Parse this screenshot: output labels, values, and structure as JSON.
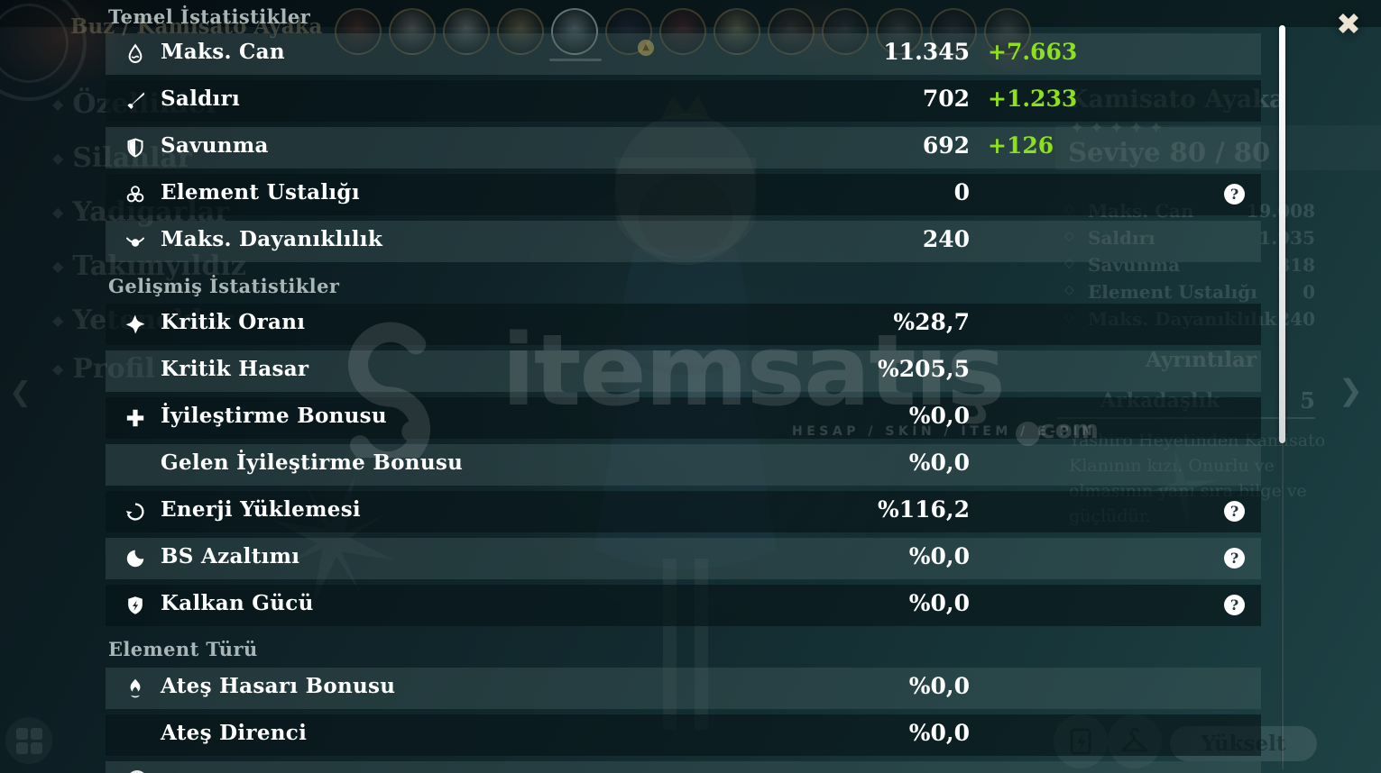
{
  "icons": {
    "close": "✖",
    "help": "?",
    "star": "✦",
    "back_chevron": "❮",
    "forward_chevron": "❯",
    "badge_arrow": "▲",
    "bullet": "◆",
    "stat_bullet": "◇"
  },
  "colors": {
    "bonus_green": "#8ee01c",
    "panel_light_row": "#1e3336",
    "panel_dark_row": "#14282c"
  },
  "overlay": {
    "sections": [
      {
        "title": "Temel İstatistikler",
        "rows": [
          {
            "icon": "hp-icon",
            "label": "Maks. Can",
            "value": "11.345",
            "bonus": "+7.663"
          },
          {
            "icon": "attack-icon",
            "label": "Saldırı",
            "value": "702",
            "bonus": "+1.233"
          },
          {
            "icon": "defense-icon",
            "label": "Savunma",
            "value": "692",
            "bonus": "+126"
          },
          {
            "icon": "elemental-mastery-icon",
            "label": "Element Ustalığı",
            "value": "0",
            "help": true
          },
          {
            "icon": "stamina-icon",
            "label": "Maks. Dayanıklılık",
            "value": "240"
          }
        ]
      },
      {
        "title": "Gelişmiş İstatistikler",
        "rows": [
          {
            "icon": "crit-rate-icon",
            "label": "Kritik Oranı",
            "value": "%28,7"
          },
          {
            "icon": null,
            "label": "Kritik Hasar",
            "value": "%205,5"
          },
          {
            "icon": "healing-bonus-icon",
            "label": "İyileştirme Bonusu",
            "value": "%0,0"
          },
          {
            "icon": null,
            "label": "Gelen İyileştirme Bonusu",
            "value": "%0,0"
          },
          {
            "icon": "energy-recharge-icon",
            "label": "Enerji Yüklemesi",
            "value": "%116,2",
            "help": true
          },
          {
            "icon": "cooldown-reduction-icon",
            "label": "BS Azaltımı",
            "value": "%0,0",
            "help": true
          },
          {
            "icon": "shield-strength-icon",
            "label": "Kalkan Gücü",
            "value": "%0,0",
            "help": true
          }
        ]
      },
      {
        "title": "Element Türü",
        "rows": [
          {
            "icon": "pyro-icon",
            "label": "Ateş Hasarı Bonusu",
            "value": "%0,0"
          },
          {
            "icon": null,
            "label": "Ateş Direnci",
            "value": "%0,0"
          }
        ]
      }
    ]
  },
  "watermark": {
    "brand": "itemsatış",
    "tagline": "HESAP / SKIN / ITEM / E-PIN",
    "tld": "com"
  },
  "background": {
    "breadcrumb": "Buz / Kamisato Ayaka",
    "sidebar": [
      "Özellikler",
      "Silahlar",
      "Yadigarlar",
      "Takımyıldız",
      "Yetenekler",
      "Profil"
    ],
    "character": {
      "name": "Kamisato Ayaka",
      "stars": 5,
      "level": "Seviye 80 / 80"
    },
    "stats": [
      {
        "label": "Maks. Can",
        "value": "19.008"
      },
      {
        "label": "Saldırı",
        "value": "1.935"
      },
      {
        "label": "Savunma",
        "value": "818"
      },
      {
        "label": "Element Ustalığı",
        "value": "0"
      },
      {
        "label": "Maks. Dayanıklılık",
        "value": "240"
      }
    ],
    "details_label": "Ayrıntılar",
    "friendship": {
      "label": "Arkadaşlık",
      "value": "5"
    },
    "description_lines": [
      "Yashiro Heyetinden Kamisato",
      "Klanının kızı. Onurlu ve",
      "olmasının yanı sıra bilge ve",
      "güçlüdür."
    ],
    "upgrade_button": "Yükselt"
  }
}
